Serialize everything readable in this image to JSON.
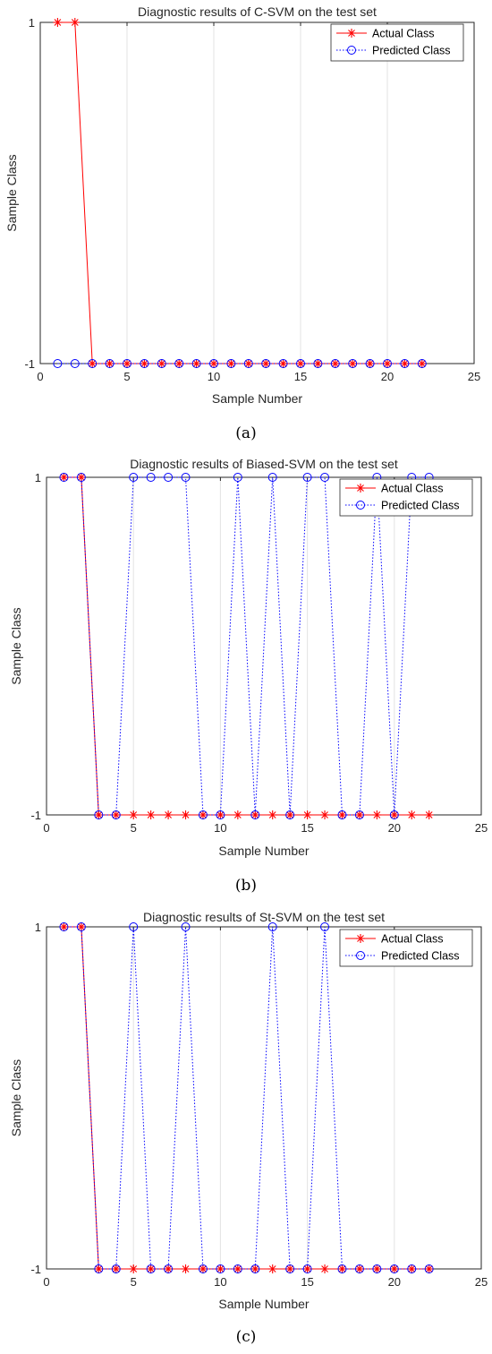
{
  "captions": [
    "(a)",
    "(b)",
    "(c)"
  ],
  "colors": {
    "actual": "#ff0000",
    "predicted": "#0000ff",
    "grid": "#e3e3e3",
    "axis": "#262626"
  },
  "chart_data": [
    {
      "type": "line",
      "title": "Diagnostic results of C-SVM on the test set",
      "xlabel": "Sample Number",
      "ylabel": "Sample Class",
      "xlim": [
        0,
        25
      ],
      "ylim": [
        -1,
        1
      ],
      "xticks": [
        0,
        5,
        10,
        15,
        20,
        25
      ],
      "yticks": [
        -1,
        1
      ],
      "grid": "x",
      "legend_position": "top-right",
      "x": [
        1,
        2,
        3,
        4,
        5,
        6,
        7,
        8,
        9,
        10,
        11,
        12,
        13,
        14,
        15,
        16,
        17,
        18,
        19,
        20,
        21,
        22
      ],
      "series": [
        {
          "name": "Actual Class",
          "style": "solid-star",
          "values": [
            1,
            1,
            -1,
            -1,
            -1,
            -1,
            -1,
            -1,
            -1,
            -1,
            -1,
            -1,
            -1,
            -1,
            -1,
            -1,
            -1,
            -1,
            -1,
            -1,
            -1,
            -1
          ]
        },
        {
          "name": "Predicted Class",
          "style": "dotted-circle",
          "values": [
            -1,
            -1,
            -1,
            -1,
            -1,
            -1,
            -1,
            -1,
            -1,
            -1,
            -1,
            -1,
            -1,
            -1,
            -1,
            -1,
            -1,
            -1,
            -1,
            -1,
            -1,
            -1
          ]
        }
      ]
    },
    {
      "type": "line",
      "title": "Diagnostic results of Biased-SVM on the test set",
      "xlabel": "Sample Number",
      "ylabel": "Sample Class",
      "xlim": [
        0,
        25
      ],
      "ylim": [
        -1,
        1
      ],
      "xticks": [
        0,
        5,
        10,
        15,
        20,
        25
      ],
      "yticks": [
        -1,
        1
      ],
      "grid": "x",
      "legend_position": "top-right",
      "x": [
        1,
        2,
        3,
        4,
        5,
        6,
        7,
        8,
        9,
        10,
        11,
        12,
        13,
        14,
        15,
        16,
        17,
        18,
        19,
        20,
        21,
        22
      ],
      "series": [
        {
          "name": "Actual Class",
          "style": "solid-star",
          "values": [
            1,
            1,
            -1,
            -1,
            -1,
            -1,
            -1,
            -1,
            -1,
            -1,
            -1,
            -1,
            -1,
            -1,
            -1,
            -1,
            -1,
            -1,
            -1,
            -1,
            -1,
            -1
          ]
        },
        {
          "name": "Predicted Class",
          "style": "dotted-circle",
          "values": [
            1,
            1,
            -1,
            -1,
            1,
            1,
            1,
            1,
            -1,
            -1,
            1,
            -1,
            1,
            -1,
            1,
            1,
            -1,
            -1,
            1,
            -1,
            1,
            1
          ]
        }
      ]
    },
    {
      "type": "line",
      "title": "Diagnostic results of St-SVM on the test set",
      "xlabel": "Sample Number",
      "ylabel": "Sample Class",
      "xlim": [
        0,
        25
      ],
      "ylim": [
        -1,
        1
      ],
      "xticks": [
        0,
        5,
        10,
        15,
        20,
        25
      ],
      "yticks": [
        -1,
        1
      ],
      "grid": "x",
      "legend_position": "top-right",
      "x": [
        1,
        2,
        3,
        4,
        5,
        6,
        7,
        8,
        9,
        10,
        11,
        12,
        13,
        14,
        15,
        16,
        17,
        18,
        19,
        20,
        21,
        22
      ],
      "series": [
        {
          "name": "Actual Class",
          "style": "solid-star",
          "values": [
            1,
            1,
            -1,
            -1,
            -1,
            -1,
            -1,
            -1,
            -1,
            -1,
            -1,
            -1,
            -1,
            -1,
            -1,
            -1,
            -1,
            -1,
            -1,
            -1,
            -1,
            -1
          ]
        },
        {
          "name": "Predicted Class",
          "style": "dotted-circle",
          "values": [
            1,
            1,
            -1,
            -1,
            1,
            -1,
            -1,
            1,
            -1,
            -1,
            -1,
            -1,
            1,
            -1,
            -1,
            1,
            -1,
            -1,
            -1,
            -1,
            -1,
            -1
          ]
        }
      ]
    }
  ]
}
